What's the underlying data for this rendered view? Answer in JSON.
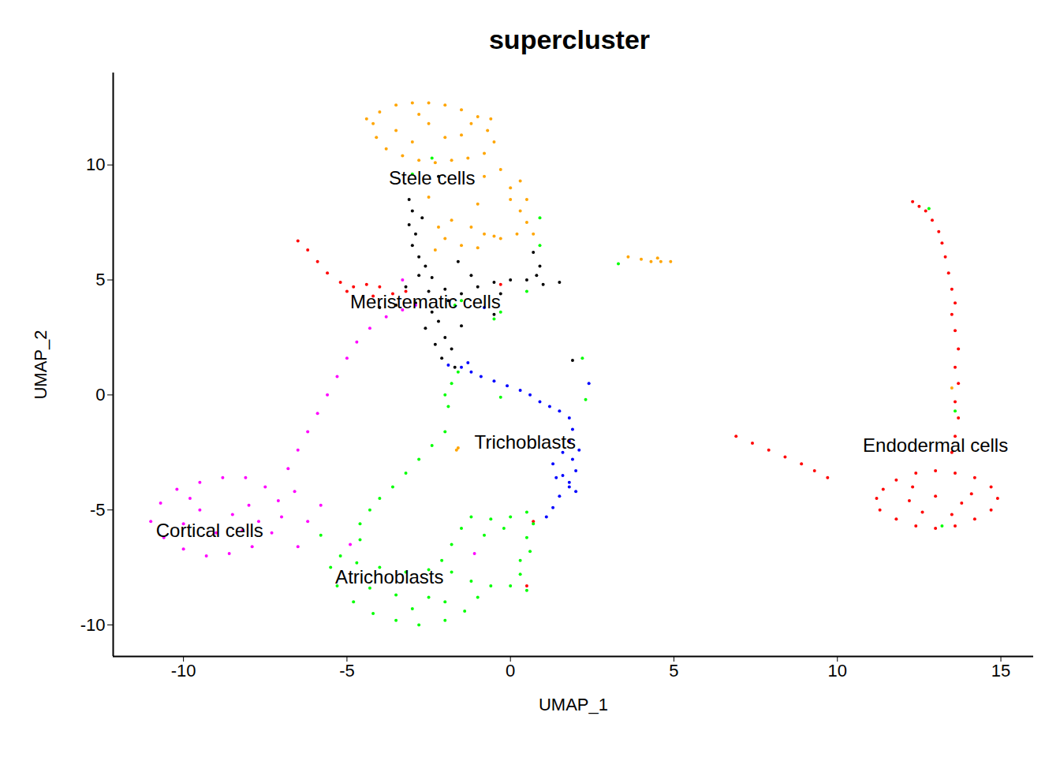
{
  "chart_data": {
    "type": "scatter",
    "title": "supercluster",
    "x_label": "UMAP_1",
    "y_label": "UMAP_2",
    "xlim": [
      -12.15,
      16.0
    ],
    "ylim": [
      -11.37,
      14.0
    ],
    "xticks": [
      -10,
      -5,
      0,
      5,
      10,
      15
    ],
    "yticks": [
      -10,
      -5,
      0,
      5,
      10
    ],
    "grid": false,
    "legend": false,
    "series": [
      {
        "name": "Stele cells",
        "color": "#FFA500",
        "label_at": [
          -2.4,
          9.4
        ],
        "values": [
          [
            -4.2,
            11.8
          ],
          [
            -4,
            12.3
          ],
          [
            -3.5,
            12.6
          ],
          [
            -3,
            12.7
          ],
          [
            -2.5,
            12.7
          ],
          [
            -2,
            12.6
          ],
          [
            -1.5,
            12.4
          ],
          [
            -1,
            12.1
          ],
          [
            -0.7,
            11.5
          ],
          [
            -0.5,
            11
          ],
          [
            -0.8,
            10.5
          ],
          [
            -1.3,
            10.3
          ],
          [
            -1.8,
            10.2
          ],
          [
            -2.3,
            10.1
          ],
          [
            -2.8,
            10.2
          ],
          [
            -3.3,
            10.4
          ],
          [
            -3.8,
            10.7
          ],
          [
            -4.1,
            11.2
          ],
          [
            -3.5,
            11.5
          ],
          [
            -2.5,
            11.8
          ],
          [
            -1.5,
            11.3
          ],
          [
            -3,
            11
          ],
          [
            -2,
            11.2
          ],
          [
            -2.8,
            12.2
          ],
          [
            -1.2,
            11.8
          ],
          [
            -4.4,
            12
          ],
          [
            -0.6,
            12
          ],
          [
            0,
            8.5
          ],
          [
            0.3,
            8
          ],
          [
            0.5,
            7.5
          ],
          [
            0.2,
            7
          ],
          [
            -0.3,
            6.8
          ],
          [
            -0.8,
            7
          ],
          [
            -1.2,
            7.3
          ],
          [
            -1.8,
            7.6
          ],
          [
            -2.2,
            7.3
          ],
          [
            -2,
            6.8
          ],
          [
            -1.5,
            6.5
          ],
          [
            -0.5,
            6.9
          ],
          [
            0,
            9
          ],
          [
            0.5,
            8.5
          ],
          [
            0.7,
            7
          ],
          [
            -0.8,
            9.5
          ],
          [
            -1,
            8.3
          ],
          [
            -0.3,
            9.8
          ],
          [
            -2.5,
            8.6
          ],
          [
            -2.3,
            6.3
          ],
          [
            -1,
            6.4
          ],
          [
            0.3,
            9.3
          ],
          [
            3.6,
            6
          ],
          [
            4,
            5.9
          ],
          [
            4.3,
            5.8
          ],
          [
            4.6,
            5.8
          ],
          [
            4.9,
            5.8
          ],
          [
            4.5,
            5.95
          ],
          [
            -1.6,
            -2.3
          ],
          [
            -1.65,
            -2.4
          ],
          [
            13.5,
            0.3
          ]
        ]
      },
      {
        "name": "Meristematic cells",
        "color": "#000000",
        "label_at": [
          -2.6,
          4.03
        ],
        "values": [
          [
            -3.1,
            8.5
          ],
          [
            -3,
            8
          ],
          [
            -3.1,
            7.4
          ],
          [
            -2.9,
            7
          ],
          [
            -3,
            6.5
          ],
          [
            -2.8,
            6
          ],
          [
            -2.6,
            5.6
          ],
          [
            -2.8,
            5.2
          ],
          [
            -3.2,
            4.7
          ],
          [
            -2.5,
            4.5
          ],
          [
            -2,
            4.6
          ],
          [
            -1.5,
            4.4
          ],
          [
            -2.9,
            4
          ],
          [
            -3.5,
            3.9
          ],
          [
            -4,
            3.8
          ],
          [
            -2.4,
            3.6
          ],
          [
            -2.2,
            3.2
          ],
          [
            -2.6,
            2.9
          ],
          [
            -2,
            2.5
          ],
          [
            -1.8,
            2
          ],
          [
            -2.1,
            1.6
          ],
          [
            -1.7,
            1.2
          ],
          [
            -1,
            4.7
          ],
          [
            -0.5,
            4.9
          ],
          [
            0,
            5
          ],
          [
            0.5,
            5
          ],
          [
            1,
            4.8
          ],
          [
            1.5,
            4.9
          ],
          [
            0.8,
            5.2
          ],
          [
            -0.3,
            4.4
          ],
          [
            -0.5,
            3.5
          ],
          [
            0.7,
            6.2
          ],
          [
            0.9,
            5.6
          ],
          [
            -2.2,
            9.5
          ],
          [
            -1.6,
            5.8
          ],
          [
            -1.2,
            5.2
          ],
          [
            -2.3,
            2.2
          ],
          [
            -1.5,
            3
          ],
          [
            1.9,
            1.5
          ],
          [
            -2.7,
            7.7
          ],
          [
            -1.9,
            4.1
          ],
          [
            -2.4,
            5.1
          ]
        ]
      },
      {
        "name": "Trichoblasts",
        "color": "#0000FF",
        "label_at": [
          0.45,
          -2.08
        ],
        "values": [
          [
            -1.9,
            1.3
          ],
          [
            -1.5,
            1.2
          ],
          [
            -1.2,
            1.0
          ],
          [
            -0.9,
            0.8
          ],
          [
            -0.5,
            0.6
          ],
          [
            -0.1,
            0.4
          ],
          [
            0.3,
            0.2
          ],
          [
            0.6,
            0
          ],
          [
            0.9,
            -0.3
          ],
          [
            1.2,
            -0.5
          ],
          [
            1.5,
            -0.7
          ],
          [
            1.8,
            -1.0
          ],
          [
            1.9,
            -1.5
          ],
          [
            1.8,
            -2
          ],
          [
            1.6,
            -2.5
          ],
          [
            1.9,
            -2.8
          ],
          [
            2.0,
            -3.3
          ],
          [
            1.6,
            -3.5
          ],
          [
            1.3,
            -3.0
          ],
          [
            1.8,
            -4
          ],
          [
            1.5,
            -4.4
          ],
          [
            1.3,
            -4.9
          ],
          [
            1.1,
            -5.3
          ],
          [
            1.8,
            -3.8
          ],
          [
            2.1,
            -2.4
          ],
          [
            -1.3,
            1.4
          ],
          [
            2.4,
            0.5
          ],
          [
            -0.8,
            3.8
          ],
          [
            1.4,
            -3.6
          ],
          [
            2.0,
            -4.2
          ]
        ]
      },
      {
        "name": "Endodermal cells",
        "color": "#FF0000",
        "label_at": [
          13.0,
          -2.2
        ],
        "values": [
          [
            -6.5,
            6.7
          ],
          [
            -6.2,
            6.3
          ],
          [
            -5.9,
            5.8
          ],
          [
            -5.6,
            5.3
          ],
          [
            -5.2,
            4.9
          ],
          [
            -4.8,
            4.7
          ],
          [
            -4.4,
            4.8
          ],
          [
            -4,
            4.7
          ],
          [
            -3.6,
            4.4
          ],
          [
            -3.2,
            4.5
          ],
          [
            -5,
            4.5
          ],
          [
            -4.2,
            4.3
          ],
          [
            -0.3,
            4.8
          ],
          [
            12.3,
            8.4
          ],
          [
            12.5,
            8.2
          ],
          [
            12.7,
            8.0
          ],
          [
            12.9,
            7.6
          ],
          [
            13.1,
            7.1
          ],
          [
            13.2,
            6.6
          ],
          [
            13.3,
            6.0
          ],
          [
            13.4,
            5.3
          ],
          [
            13.5,
            4.6
          ],
          [
            13.6,
            4.0
          ],
          [
            13.5,
            3.5
          ],
          [
            13.6,
            2.8
          ],
          [
            13.7,
            2.0
          ],
          [
            13.6,
            1.2
          ],
          [
            13.7,
            0.5
          ],
          [
            13.6,
            -0.3
          ],
          [
            13.7,
            -1.0
          ],
          [
            13.6,
            -1.8
          ],
          [
            13.5,
            -2.5
          ],
          [
            6.9,
            -1.8
          ],
          [
            7.4,
            -2.1
          ],
          [
            7.9,
            -2.4
          ],
          [
            8.4,
            -2.7
          ],
          [
            8.9,
            -3.0
          ],
          [
            9.3,
            -3.3
          ],
          [
            9.7,
            -3.6
          ],
          [
            11.2,
            -4.5
          ],
          [
            11.3,
            -5
          ],
          [
            11.8,
            -5.4
          ],
          [
            12.4,
            -5.7
          ],
          [
            13,
            -5.8
          ],
          [
            13.6,
            -5.7
          ],
          [
            14.2,
            -5.4
          ],
          [
            14.7,
            -5
          ],
          [
            14.9,
            -4.5
          ],
          [
            14.7,
            -4
          ],
          [
            14.2,
            -3.6
          ],
          [
            13.6,
            -3.4
          ],
          [
            13,
            -3.3
          ],
          [
            12.4,
            -3.4
          ],
          [
            11.8,
            -3.7
          ],
          [
            11.4,
            -4.1
          ],
          [
            12.2,
            -4.6
          ],
          [
            13,
            -4.4
          ],
          [
            13.8,
            -4.7
          ],
          [
            12.6,
            -5.1
          ],
          [
            13.5,
            -5.2
          ],
          [
            14.1,
            -4.3
          ],
          [
            12.3,
            -4
          ],
          [
            0.7,
            -5.5
          ],
          [
            0.5,
            -8.3
          ]
        ]
      },
      {
        "name": "Cortical cells",
        "color": "#FF00FF",
        "label_at": [
          -9.2,
          -5.9
        ],
        "values": [
          [
            -11,
            -5.5
          ],
          [
            -10.7,
            -4.7
          ],
          [
            -10.2,
            -4.1
          ],
          [
            -9.5,
            -3.8
          ],
          [
            -8.8,
            -3.6
          ],
          [
            -8.1,
            -3.6
          ],
          [
            -7.5,
            -4
          ],
          [
            -7.1,
            -4.6
          ],
          [
            -7,
            -5.3
          ],
          [
            -7.3,
            -6
          ],
          [
            -7.9,
            -6.6
          ],
          [
            -8.6,
            -6.9
          ],
          [
            -9.3,
            -7
          ],
          [
            -10,
            -6.7
          ],
          [
            -10.6,
            -6.2
          ],
          [
            -9.5,
            -5
          ],
          [
            -8.5,
            -5.2
          ],
          [
            -9,
            -6
          ],
          [
            -8,
            -4.8
          ],
          [
            -10,
            -5.6
          ],
          [
            -8.2,
            -5.9
          ],
          [
            -9.8,
            -4.5
          ],
          [
            -6.6,
            -4.2
          ],
          [
            -6.2,
            -5.5
          ],
          [
            -6.5,
            -6.6
          ],
          [
            -5.8,
            -4.8
          ],
          [
            -6.8,
            -3.2
          ],
          [
            -6.5,
            -2.4
          ],
          [
            -6.2,
            -1.6
          ],
          [
            -5.9,
            -0.8
          ],
          [
            -5.6,
            0
          ],
          [
            -5.3,
            0.8
          ],
          [
            -5,
            1.6
          ],
          [
            -4.7,
            2.3
          ],
          [
            -4.3,
            2.9
          ],
          [
            -3.8,
            3.4
          ],
          [
            -3.3,
            3.7
          ],
          [
            -2.9,
            3.9
          ],
          [
            -4.9,
            -6.5
          ],
          [
            -3.3,
            5
          ],
          [
            -7.7,
            -5.5
          ],
          [
            -1.1,
            -6.9
          ]
        ]
      },
      {
        "name": "Atrichoblasts",
        "color": "#00FF00",
        "label_at": [
          -3.7,
          -7.95
        ],
        "values": [
          [
            -5.5,
            -7.5
          ],
          [
            -5.3,
            -8.3
          ],
          [
            -4.8,
            -9
          ],
          [
            -4.2,
            -9.5
          ],
          [
            -3.5,
            -9.8
          ],
          [
            -2.8,
            -10
          ],
          [
            -2,
            -9.8
          ],
          [
            -1.4,
            -9.4
          ],
          [
            -1,
            -8.8
          ],
          [
            -1.2,
            -8.1
          ],
          [
            -1.8,
            -7.7
          ],
          [
            -2.5,
            -7.6
          ],
          [
            -3.2,
            -7.7
          ],
          [
            -4,
            -7.5
          ],
          [
            -4.7,
            -7.3
          ],
          [
            -5.2,
            -7
          ],
          [
            -3.5,
            -8.7
          ],
          [
            -2.5,
            -8.8
          ],
          [
            -4.3,
            -8.4
          ],
          [
            -2,
            -9
          ],
          [
            -3,
            -9.3
          ],
          [
            -5.8,
            -6.1
          ],
          [
            -4.6,
            -6.3
          ],
          [
            -4.6,
            -5.6
          ],
          [
            -4.3,
            -5
          ],
          [
            -4,
            -4.5
          ],
          [
            -3.6,
            -4
          ],
          [
            -3.2,
            -3.4
          ],
          [
            -2.8,
            -2.8
          ],
          [
            -2.4,
            -2.2
          ],
          [
            -2,
            -1.6
          ],
          [
            -2.1,
            -7.2
          ],
          [
            -1.8,
            -6.5
          ],
          [
            -1.5,
            -5.8
          ],
          [
            -1.2,
            -5.3
          ],
          [
            -0.6,
            -5.4
          ],
          [
            0,
            -5.3
          ],
          [
            0.5,
            -5.1
          ],
          [
            0.7,
            -5.6
          ],
          [
            0.5,
            -6.2
          ],
          [
            -0.2,
            -5.8
          ],
          [
            -0.8,
            -6.1
          ],
          [
            0.6,
            -6.8
          ],
          [
            0.3,
            -7.2
          ],
          [
            0.3,
            -7.8
          ],
          [
            0.5,
            -8.5
          ],
          [
            0,
            -8.3
          ],
          [
            -0.6,
            -8.3
          ],
          [
            -2,
            0
          ],
          [
            -1.8,
            0.5
          ],
          [
            -1.6,
            1
          ],
          [
            -1.9,
            -0.5
          ],
          [
            -0.5,
            3.3
          ],
          [
            -0.3,
            3.6
          ],
          [
            -1.7,
            3.9
          ],
          [
            -2.4,
            10.3
          ],
          [
            -3,
            9.6
          ],
          [
            0.9,
            7.7
          ],
          [
            2.2,
            1.6
          ],
          [
            2.3,
            -0.2
          ],
          [
            3.3,
            5.7
          ],
          [
            0.5,
            4.5
          ],
          [
            13.6,
            -0.7
          ],
          [
            13.2,
            -5.7
          ],
          [
            12.8,
            8.1
          ],
          [
            -0.3,
            -0.1
          ],
          [
            -1.5,
            4.1
          ],
          [
            0.9,
            6.5
          ]
        ]
      }
    ]
  }
}
